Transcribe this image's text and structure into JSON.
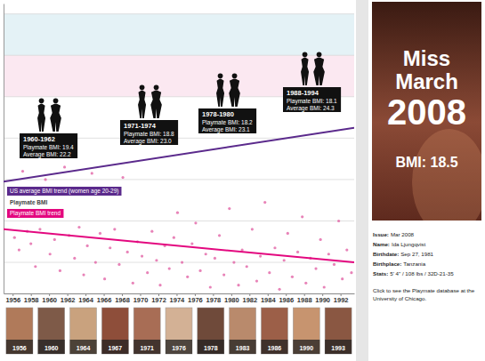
{
  "chart_data": {
    "type": "line",
    "xlim": [
      1955,
      1993.5
    ],
    "xticks": [
      1956,
      1958,
      1960,
      1962,
      1964,
      1966,
      1968,
      1970,
      1972,
      1974,
      1976,
      1978,
      1980,
      1982,
      1984,
      1986,
      1988,
      1990,
      1992
    ],
    "ylim": [
      16.5,
      30.5
    ],
    "yticks": [
      18,
      20,
      22,
      24,
      26,
      28,
      30
    ],
    "grid": true,
    "tick_labels": "x",
    "legend": "left",
    "series": [
      {
        "name": "US average BMI trend (women age 20-29)",
        "type": "line",
        "color": "#5b2a8c",
        "line_style": "solid",
        "x": [
          1955,
          1993.5
        ],
        "values": [
          21.9,
          24.5
        ]
      },
      {
        "name": "Playmate BMI",
        "type": "scatter",
        "color": "#e05aa0",
        "marker": "circle",
        "x": [
          1956.2,
          1956.7,
          1957.1,
          1957.6,
          1958.0,
          1958.5,
          1959.0,
          1959.6,
          1960.1,
          1960.6,
          1961.2,
          1961.7,
          1962.2,
          1962.8,
          1963.3,
          1963.8,
          1964.2,
          1964.7,
          1965.1,
          1965.6,
          1966.1,
          1966.7,
          1967.2,
          1967.7,
          1968.1,
          1968.6,
          1969.2,
          1969.7,
          1970.2,
          1970.8,
          1971.3,
          1971.8,
          1972.2,
          1972.7,
          1973.2,
          1973.7,
          1974.1,
          1974.6,
          1975.2,
          1975.7,
          1976.1,
          1976.6,
          1977.2,
          1977.7,
          1978.2,
          1978.7,
          1979.2,
          1979.8,
          1980.3,
          1980.8,
          1981.2,
          1981.7,
          1982.3,
          1982.8,
          1983.2,
          1983.7,
          1984.2,
          1984.8,
          1985.3,
          1985.8,
          1986.2,
          1986.7,
          1987.3,
          1987.8,
          1988.2,
          1988.7,
          1989.3,
          1989.8,
          1990.2,
          1990.7,
          1991.3,
          1991.8,
          1992.2,
          1992.7,
          1993.2
        ],
        "values": [
          19.2,
          18.6,
          22.4,
          19.5,
          18.9,
          17.8,
          19.6,
          22.0,
          18.4,
          19.1,
          17.6,
          22.6,
          19.3,
          18.2,
          19.7,
          17.4,
          18.8,
          22.3,
          18.0,
          19.4,
          17.2,
          18.7,
          19.6,
          17.9,
          22.1,
          18.5,
          17.0,
          19.0,
          18.3,
          17.5,
          19.5,
          18.1,
          16.9,
          18.8,
          17.7,
          19.2,
          20.4,
          18.0,
          17.3,
          18.9,
          19.9,
          17.6,
          18.4,
          16.8,
          18.2,
          19.3,
          17.4,
          20.6,
          18.0,
          16.9,
          18.6,
          17.8,
          19.6,
          17.1,
          18.3,
          20.9,
          17.5,
          18.7,
          16.7,
          18.1,
          19.4,
          17.3,
          18.5,
          20.2,
          17.0,
          18.2,
          17.7,
          19.1,
          16.8,
          18.4,
          17.9,
          20.0,
          17.2,
          18.6,
          17.5
        ]
      },
      {
        "name": "Playmate BMI trend",
        "type": "line",
        "color": "#e3087f",
        "line_style": "solid",
        "x": [
          1955,
          1993.5
        ],
        "values": [
          19.6,
          18.0
        ]
      }
    ],
    "annotations": [
      {
        "title": "1960-1962",
        "lines": [
          "Playmate BMI: 19.4",
          "Average BMI: 22.2"
        ]
      },
      {
        "title": "1971-1974",
        "lines": [
          "Playmate BMI: 18.8",
          "Average BMI: 23.0"
        ]
      },
      {
        "title": "1978-1980",
        "lines": [
          "Playmate BMI: 18.2",
          "Average BMI: 23.1"
        ]
      },
      {
        "title": "1988-1994",
        "lines": [
          "Playmate BMI: 18.1",
          "Average BMI: 24.3"
        ]
      }
    ]
  },
  "sidebar": {
    "cover": {
      "lines": [
        "Miss",
        "March",
        "2008"
      ],
      "caption": "BMI: 18.5"
    },
    "info": [
      {
        "label": "Issue:",
        "value": "Mar 2008"
      },
      {
        "label": "Name:",
        "value": "Ida Ljungqvist"
      },
      {
        "label": "Birthdate:",
        "value": "Sep 27, 1981"
      },
      {
        "label": "Birthplace:",
        "value": "Tanzania"
      },
      {
        "label": "Stats:",
        "value": "5' 4\" / 108 lbs / 32D-21-35"
      }
    ],
    "note": "Click to see the Playmate database at the University of Chicago."
  },
  "thumbnails": [
    "1956",
    "1960",
    "1964",
    "1967",
    "1971",
    "1976",
    "1978",
    "1983",
    "1986",
    "1990",
    "1993"
  ]
}
